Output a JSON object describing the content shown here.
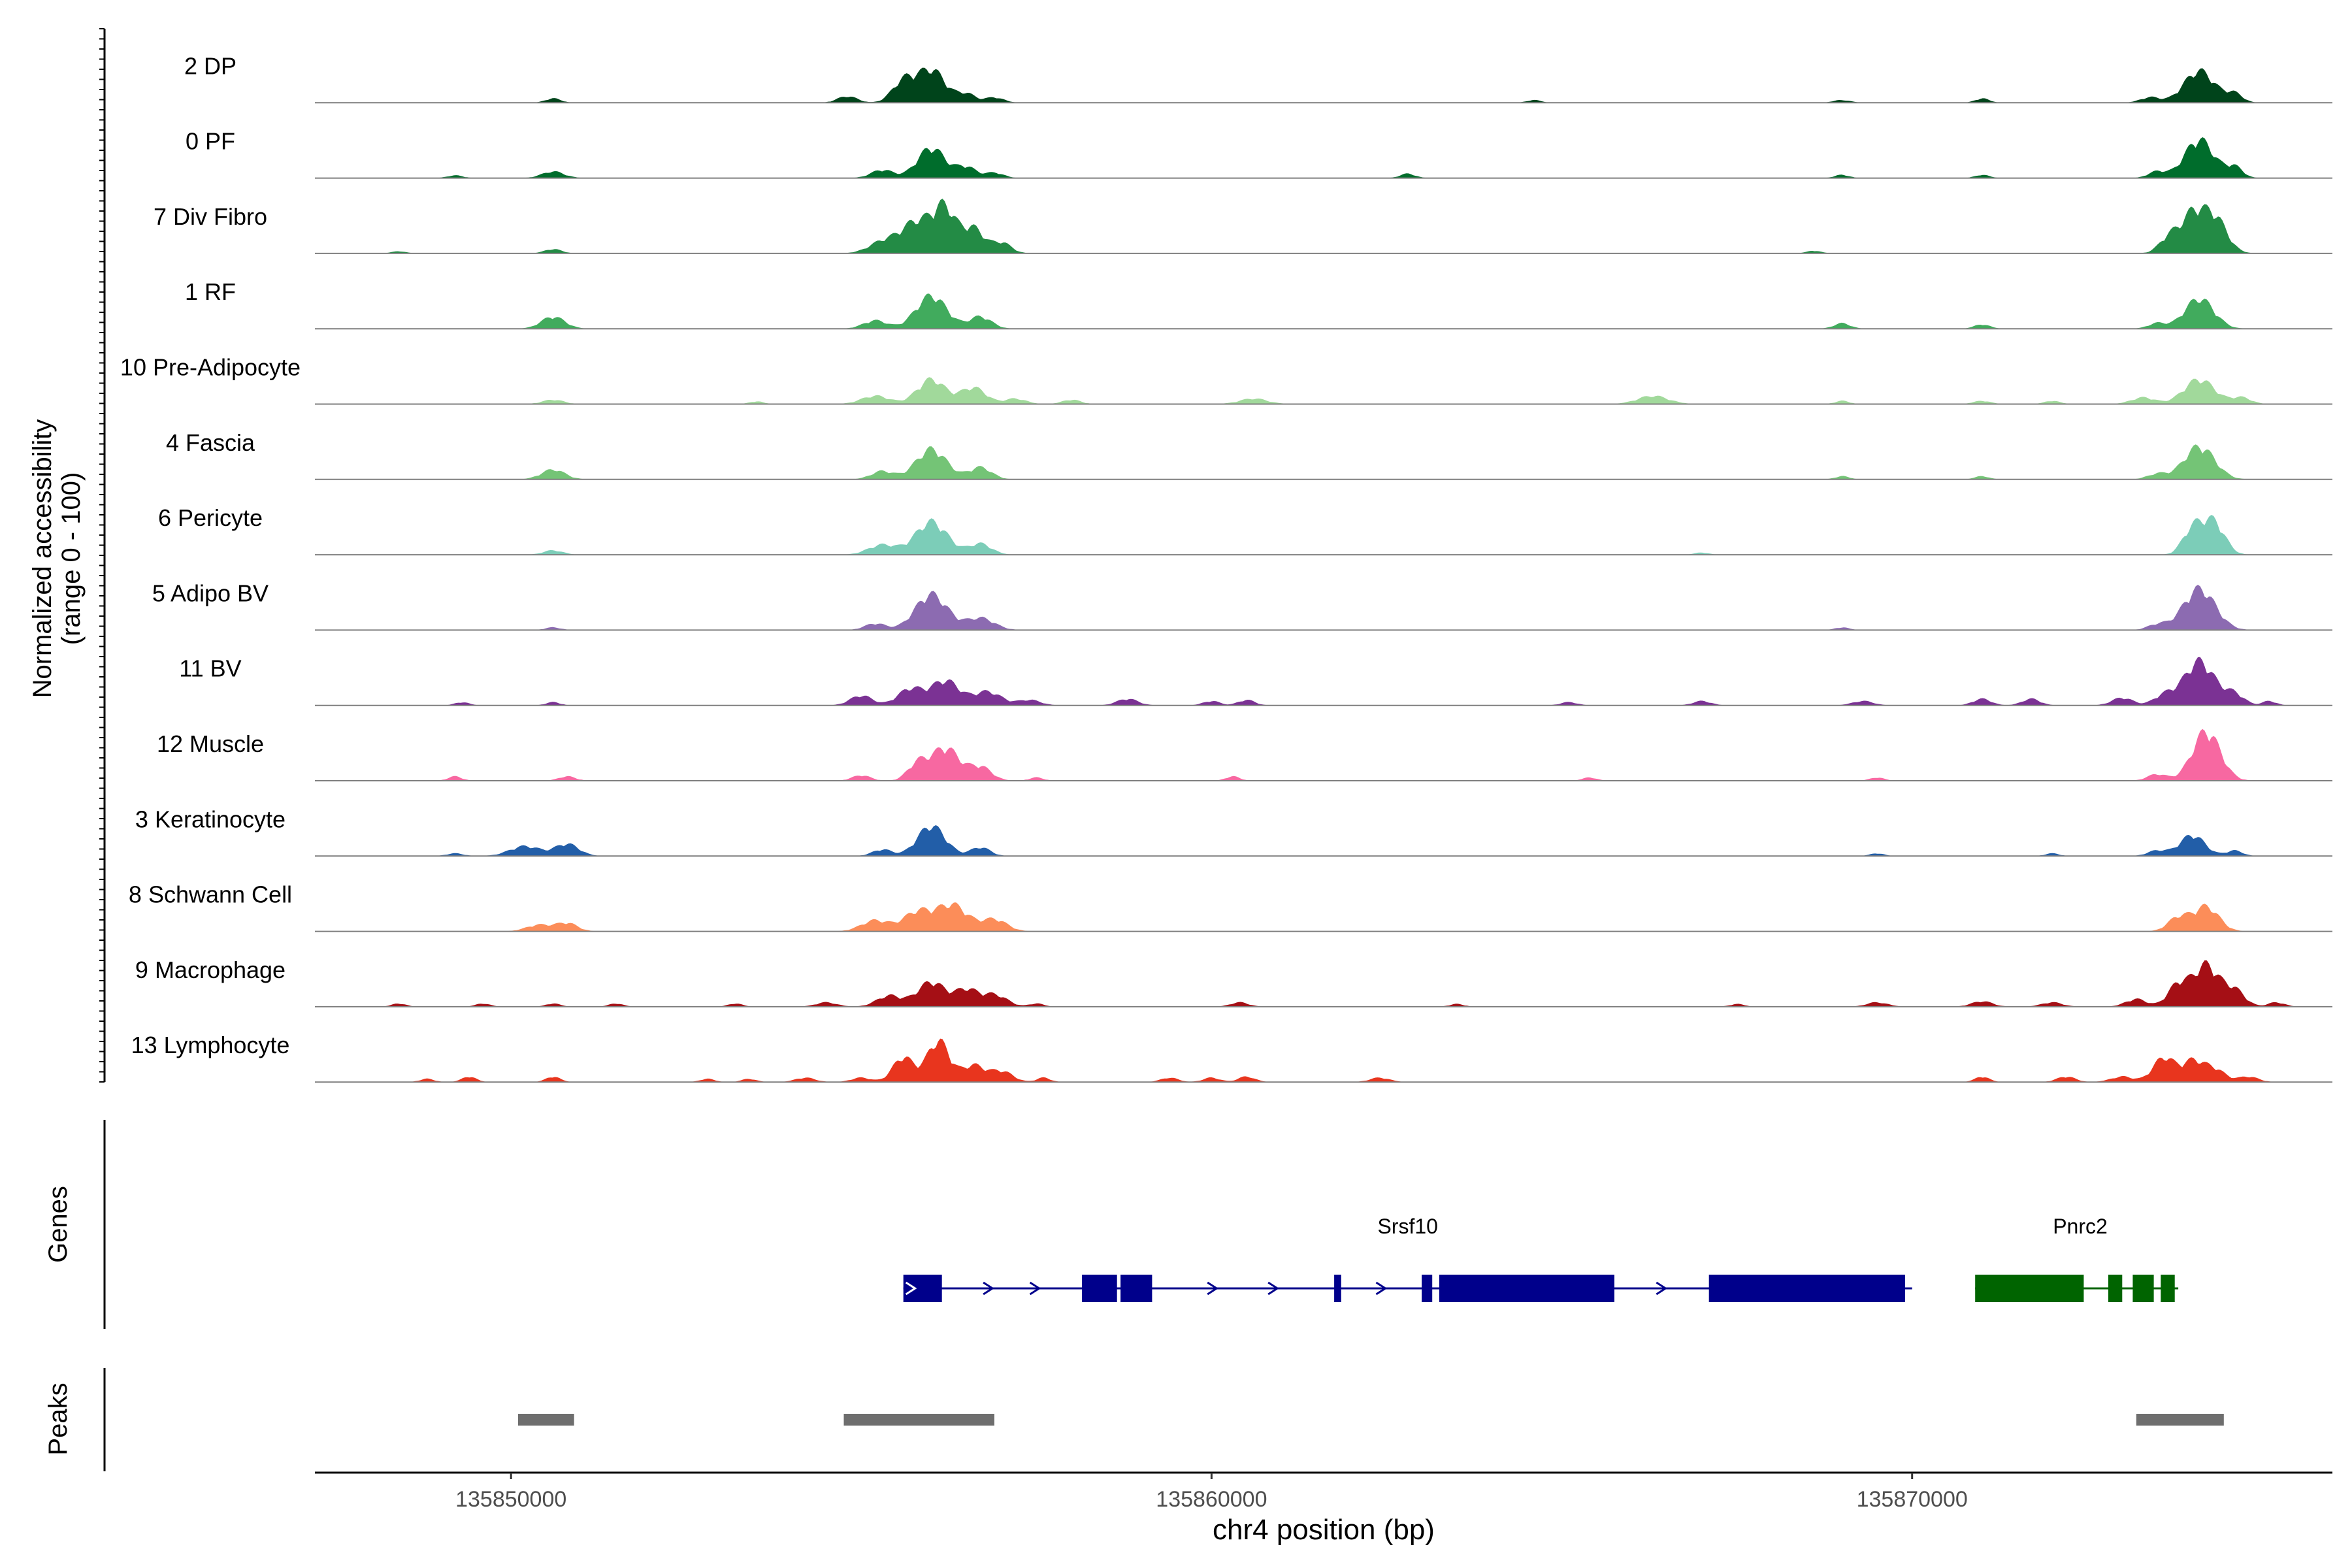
{
  "chart_data": {
    "type": "area",
    "title": "",
    "ylabel_accessibility": [
      "Normalized accessibility",
      "(range 0 - 100)"
    ],
    "ylabel_genes": "Genes",
    "ylabel_peaks": "Peaks",
    "xlabel": "chr4 position (bp)",
    "xlim": [
      135847200,
      135876000
    ],
    "ylim": [
      0,
      100
    ],
    "x_ticks": [
      {
        "value": 135850000,
        "label": "135850000"
      },
      {
        "value": 135860000,
        "label": "135860000"
      },
      {
        "value": 135870000,
        "label": "135870000"
      }
    ],
    "tracks": [
      {
        "label": "2 DP",
        "color": "#00441b",
        "peaks": [
          [
            135850600,
            8,
            110
          ],
          [
            135854800,
            12,
            140
          ],
          [
            135855600,
            38,
            160
          ],
          [
            135856000,
            60,
            200
          ],
          [
            135856500,
            16,
            130
          ],
          [
            135856900,
            10,
            130
          ],
          [
            135864600,
            5,
            100
          ],
          [
            135869000,
            5,
            120
          ],
          [
            135871000,
            8,
            100
          ],
          [
            135873400,
            10,
            140
          ],
          [
            135874100,
            58,
            220
          ],
          [
            135874600,
            16,
            120
          ]
        ]
      },
      {
        "label": "0 PF",
        "color": "#006d2c",
        "peaks": [
          [
            135849200,
            5,
            110
          ],
          [
            135850600,
            12,
            160
          ],
          [
            135855300,
            15,
            160
          ],
          [
            135856000,
            55,
            200
          ],
          [
            135856500,
            20,
            140
          ],
          [
            135856900,
            10,
            130
          ],
          [
            135862800,
            8,
            110
          ],
          [
            135869000,
            6,
            100
          ],
          [
            135871000,
            6,
            100
          ],
          [
            135873500,
            12,
            130
          ],
          [
            135874100,
            70,
            210
          ],
          [
            135874600,
            20,
            120
          ]
        ]
      },
      {
        "label": "7 Div Fibro",
        "color": "#238b45",
        "peaks": [
          [
            135848400,
            4,
            100
          ],
          [
            135850600,
            8,
            120
          ],
          [
            135855300,
            20,
            200
          ],
          [
            135855800,
            58,
            230
          ],
          [
            135856200,
            75,
            160
          ],
          [
            135856600,
            45,
            150
          ],
          [
            135857000,
            20,
            140
          ],
          [
            135868600,
            5,
            100
          ],
          [
            135873700,
            35,
            150
          ],
          [
            135874000,
            58,
            140
          ],
          [
            135874300,
            70,
            180
          ]
        ]
      },
      {
        "label": "1 RF",
        "color": "#41ab5d",
        "peaks": [
          [
            135850600,
            22,
            170
          ],
          [
            135855200,
            15,
            170
          ],
          [
            135856000,
            60,
            220
          ],
          [
            135856700,
            22,
            160
          ],
          [
            135869000,
            10,
            120
          ],
          [
            135871000,
            8,
            110
          ],
          [
            135873500,
            10,
            130
          ],
          [
            135874100,
            55,
            210
          ]
        ]
      },
      {
        "label": "10 Pre-Adipocyte",
        "color": "#a1d99b",
        "peaks": [
          [
            135850600,
            8,
            150
          ],
          [
            135853500,
            5,
            100
          ],
          [
            135855200,
            15,
            200
          ],
          [
            135856000,
            45,
            200
          ],
          [
            135856600,
            30,
            180
          ],
          [
            135857200,
            10,
            150
          ],
          [
            135858000,
            8,
            130
          ],
          [
            135860600,
            10,
            200
          ],
          [
            135866300,
            15,
            220
          ],
          [
            135869000,
            6,
            100
          ],
          [
            135871000,
            6,
            120
          ],
          [
            135872000,
            6,
            110
          ],
          [
            135873300,
            12,
            170
          ],
          [
            135874100,
            45,
            220
          ],
          [
            135874700,
            12,
            140
          ]
        ]
      },
      {
        "label": "4 Fascia",
        "color": "#74c476",
        "peaks": [
          [
            135850600,
            18,
            170
          ],
          [
            135855300,
            15,
            160
          ],
          [
            135856000,
            55,
            220
          ],
          [
            135856700,
            22,
            160
          ],
          [
            135869000,
            6,
            100
          ],
          [
            135871000,
            6,
            100
          ],
          [
            135873500,
            10,
            140
          ],
          [
            135874100,
            60,
            220
          ]
        ]
      },
      {
        "label": "6 Pericyte",
        "color": "#7ccdb8",
        "peaks": [
          [
            135850600,
            8,
            140
          ],
          [
            135855300,
            18,
            200
          ],
          [
            135856000,
            60,
            230
          ],
          [
            135856700,
            20,
            160
          ],
          [
            135867000,
            4,
            100
          ],
          [
            135874000,
            45,
            140
          ],
          [
            135874300,
            60,
            160
          ]
        ]
      },
      {
        "label": "5 Adipo BV",
        "color": "#8c6bb1",
        "peaks": [
          [
            135850600,
            5,
            110
          ],
          [
            135855200,
            12,
            150
          ],
          [
            135856000,
            65,
            230
          ],
          [
            135856700,
            22,
            200
          ],
          [
            135869000,
            5,
            100
          ],
          [
            135873500,
            10,
            140
          ],
          [
            135874100,
            75,
            230
          ]
        ]
      },
      {
        "label": "11 BV",
        "color": "#7b3294",
        "peaks": [
          [
            135849300,
            6,
            100
          ],
          [
            135850600,
            6,
            100
          ],
          [
            135855000,
            18,
            160
          ],
          [
            135855700,
            30,
            180
          ],
          [
            135856200,
            45,
            200
          ],
          [
            135856800,
            25,
            200
          ],
          [
            135857400,
            10,
            160
          ],
          [
            135858800,
            12,
            150
          ],
          [
            135860000,
            8,
            120
          ],
          [
            135860500,
            10,
            120
          ],
          [
            135865100,
            6,
            120
          ],
          [
            135867000,
            8,
            130
          ],
          [
            135869300,
            8,
            150
          ],
          [
            135871000,
            12,
            130
          ],
          [
            135871700,
            12,
            130
          ],
          [
            135873000,
            14,
            150
          ],
          [
            135873600,
            18,
            150
          ],
          [
            135874100,
            80,
            220
          ],
          [
            135874600,
            20,
            140
          ],
          [
            135875100,
            8,
            100
          ]
        ]
      },
      {
        "label": "12 Muscle",
        "color": "#f768a1",
        "peaks": [
          [
            135849200,
            8,
            100
          ],
          [
            135850800,
            8,
            120
          ],
          [
            135855000,
            10,
            130
          ],
          [
            135855800,
            30,
            140
          ],
          [
            135856200,
            60,
            200
          ],
          [
            135856700,
            25,
            160
          ],
          [
            135857500,
            6,
            100
          ],
          [
            135860300,
            8,
            100
          ],
          [
            135865400,
            6,
            100
          ],
          [
            135869500,
            6,
            100
          ],
          [
            135873500,
            12,
            140
          ],
          [
            135874200,
            90,
            200
          ]
        ]
      },
      {
        "label": "3 Keratinocyte",
        "color": "#225ea8",
        "peaks": [
          [
            135849200,
            5,
            120
          ],
          [
            135850200,
            18,
            220
          ],
          [
            135850800,
            22,
            170
          ],
          [
            135855300,
            12,
            140
          ],
          [
            135856000,
            55,
            200
          ],
          [
            135856700,
            16,
            140
          ],
          [
            135869500,
            5,
            100
          ],
          [
            135872000,
            5,
            100
          ],
          [
            135873500,
            10,
            140
          ],
          [
            135874000,
            38,
            180
          ],
          [
            135874600,
            10,
            120
          ]
        ]
      },
      {
        "label": "8 Schwann Cell",
        "color": "#fc8d59",
        "peaks": [
          [
            135850400,
            12,
            180
          ],
          [
            135850800,
            15,
            150
          ],
          [
            135855200,
            20,
            200
          ],
          [
            135855800,
            35,
            200
          ],
          [
            135856300,
            48,
            220
          ],
          [
            135856900,
            22,
            180
          ],
          [
            135873800,
            25,
            150
          ],
          [
            135874200,
            45,
            180
          ]
        ]
      },
      {
        "label": "9 Macrophage",
        "color": "#a50f15",
        "peaks": [
          [
            135848400,
            6,
            100
          ],
          [
            135849600,
            6,
            100
          ],
          [
            135850600,
            6,
            100
          ],
          [
            135851500,
            6,
            100
          ],
          [
            135853200,
            6,
            100
          ],
          [
            135854500,
            8,
            150
          ],
          [
            135855400,
            20,
            180
          ],
          [
            135856000,
            45,
            200
          ],
          [
            135856500,
            30,
            160
          ],
          [
            135856900,
            22,
            180
          ],
          [
            135857500,
            6,
            100
          ],
          [
            135860400,
            8,
            130
          ],
          [
            135863500,
            5,
            100
          ],
          [
            135867500,
            5,
            100
          ],
          [
            135869500,
            8,
            150
          ],
          [
            135871000,
            10,
            150
          ],
          [
            135872000,
            8,
            150
          ],
          [
            135873200,
            14,
            150
          ],
          [
            135873800,
            40,
            150
          ],
          [
            135874200,
            75,
            180
          ],
          [
            135874600,
            30,
            150
          ],
          [
            135875200,
            8,
            120
          ]
        ]
      },
      {
        "label": "13 Lymphocyte",
        "color": "#e8351e",
        "peaks": [
          [
            135848800,
            6,
            100
          ],
          [
            135849400,
            10,
            100
          ],
          [
            135850600,
            10,
            100
          ],
          [
            135852800,
            6,
            100
          ],
          [
            135853400,
            6,
            100
          ],
          [
            135854200,
            8,
            140
          ],
          [
            135855000,
            8,
            140
          ],
          [
            135855600,
            45,
            150
          ],
          [
            135856100,
            75,
            160
          ],
          [
            135856600,
            30,
            160
          ],
          [
            135857000,
            20,
            160
          ],
          [
            135857600,
            8,
            100
          ],
          [
            135859400,
            8,
            120
          ],
          [
            135860000,
            8,
            120
          ],
          [
            135860500,
            10,
            120
          ],
          [
            135862400,
            8,
            140
          ],
          [
            135871000,
            10,
            100
          ],
          [
            135872200,
            10,
            130
          ],
          [
            135873000,
            10,
            160
          ],
          [
            135873600,
            45,
            160
          ],
          [
            135874000,
            35,
            140
          ],
          [
            135874300,
            25,
            160
          ],
          [
            135874800,
            10,
            140
          ]
        ]
      }
    ],
    "genes": [
      {
        "name": "Srsf10",
        "color": "#00008b",
        "strand": "+",
        "start": 135855600,
        "end": 135870000,
        "label_x": 135862800,
        "exons": [
          [
            135855600,
            135856150
          ],
          [
            135858150,
            135858650
          ],
          [
            135858700,
            135859150
          ],
          [
            135861750,
            135861850
          ],
          [
            135863000,
            135863150
          ],
          [
            135863250,
            135865750
          ],
          [
            135867100,
            135869900
          ]
        ]
      },
      {
        "name": "Pnrc2",
        "color": "#006400",
        "strand": "-",
        "start": 135870900,
        "end": 135873800,
        "label_x": 135872400,
        "exons": [
          [
            135870900,
            135872450
          ],
          [
            135872800,
            135873000
          ],
          [
            135873150,
            135873450
          ],
          [
            135873550,
            135873750
          ]
        ]
      }
    ],
    "peak_regions": [
      [
        135850100,
        135850900
      ],
      [
        135854750,
        135856900
      ],
      [
        135873200,
        135874450
      ]
    ]
  }
}
